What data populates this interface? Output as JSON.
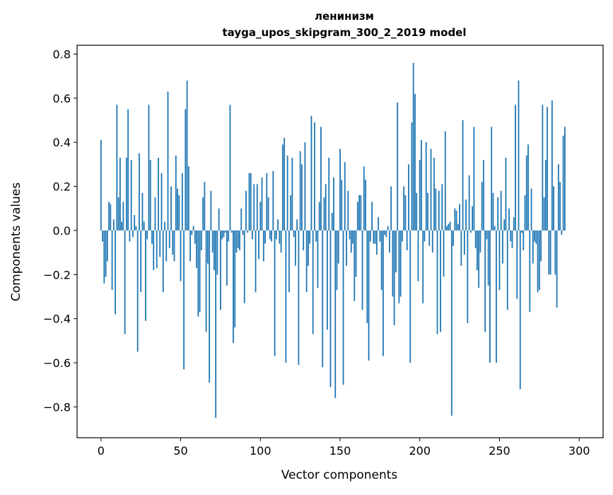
{
  "chart_data": {
    "type": "bar",
    "title": "ленинизм",
    "subtitle": "tayga_upos_skipgram_300_2_2019 model",
    "xlabel": "Vector components",
    "ylabel": "Components values",
    "xlim": [
      -15,
      315
    ],
    "ylim": [
      -0.94,
      0.84
    ],
    "xticks": [
      0,
      50,
      100,
      150,
      200,
      250,
      300
    ],
    "yticks": [
      -0.8,
      -0.6,
      -0.4,
      -0.2,
      0.0,
      0.2,
      0.4,
      0.6,
      0.8
    ],
    "ytick_labels": [
      "−0.8",
      "−0.6",
      "−0.4",
      "−0.2",
      "0.0",
      "0.2",
      "0.4",
      "0.6",
      "0.8"
    ],
    "bar_color": "#1f77b4",
    "grid": false,
    "values": [
      0.41,
      -0.05,
      -0.24,
      -0.21,
      -0.14,
      0.13,
      0.12,
      -0.27,
      0.05,
      -0.38,
      0.57,
      0.15,
      0.33,
      0.04,
      0.13,
      -0.47,
      0.33,
      0.55,
      -0.05,
      0.32,
      -0.03,
      0.07,
      0.02,
      -0.55,
      0.35,
      -0.28,
      0.17,
      0.04,
      -0.41,
      -0.04,
      0.57,
      0.32,
      -0.06,
      -0.18,
      0.15,
      -0.17,
      0.33,
      -0.12,
      0.26,
      -0.28,
      0.04,
      -0.14,
      0.63,
      -0.08,
      0.2,
      -0.11,
      -0.14,
      0.34,
      0.19,
      0.16,
      -0.23,
      0.26,
      -0.63,
      0.55,
      0.68,
      0.29,
      -0.14,
      -0.02,
      0.02,
      -0.06,
      -0.17,
      -0.39,
      -0.37,
      -0.09,
      0.15,
      0.22,
      -0.46,
      -0.15,
      -0.69,
      0.18,
      -0.1,
      -0.18,
      -0.85,
      -0.2,
      0.1,
      -0.36,
      -0.04,
      -0.03,
      -0.01,
      -0.25,
      -0.05,
      0.57,
      -0.01,
      -0.51,
      -0.44,
      -0.1,
      -0.08,
      -0.09,
      0.1,
      -0.02,
      -0.33,
      0.18,
      -0.01,
      0.26,
      0.26,
      -0.04,
      0.21,
      -0.28,
      0.21,
      -0.13,
      0.13,
      0.24,
      -0.14,
      -0.06,
      0.26,
      0.15,
      -0.04,
      -0.05,
      0.27,
      -0.57,
      -0.04,
      0.05,
      -0.06,
      -0.1,
      0.39,
      0.42,
      -0.6,
      0.34,
      -0.28,
      0.16,
      0.33,
      -0.03,
      -0.16,
      0.05,
      -0.61,
      0.36,
      0.3,
      -0.09,
      0.4,
      -0.28,
      -0.16,
      -0.06,
      0.52,
      -0.47,
      0.49,
      -0.05,
      -0.26,
      0.13,
      0.47,
      -0.62,
      0.15,
      0.21,
      -0.45,
      0.33,
      -0.71,
      0.08,
      0.24,
      -0.76,
      -0.27,
      -0.15,
      0.37,
      0.23,
      -0.7,
      0.31,
      -0.16,
      0.18,
      -0.04,
      -0.1,
      -0.06,
      -0.32,
      -0.21,
      0.13,
      0.16,
      0.16,
      -0.36,
      0.29,
      0.23,
      -0.42,
      -0.59,
      -0.05,
      0.13,
      -0.06,
      -0.06,
      -0.11,
      0.06,
      -0.05,
      -0.27,
      -0.57,
      -0.02,
      -0.03,
      0.02,
      -0.1,
      0.2,
      -0.3,
      -0.43,
      -0.19,
      0.58,
      -0.33,
      -0.3,
      -0.05,
      0.2,
      0.16,
      -0.09,
      0.3,
      -0.6,
      0.49,
      0.76,
      0.62,
      0.17,
      -0.23,
      0.32,
      0.41,
      -0.33,
      -0.05,
      0.4,
      0.17,
      -0.07,
      0.37,
      -0.1,
      0.33,
      0.19,
      -0.47,
      0.18,
      -0.46,
      0.21,
      -0.21,
      0.45,
      0.02,
      0.03,
      0.04,
      -0.84,
      -0.07,
      0.1,
      0.09,
      0.03,
      0.12,
      -0.16,
      0.5,
      -0.11,
      0.14,
      -0.42,
      0.25,
      -0.01,
      0.11,
      0.47,
      -0.08,
      -0.18,
      -0.26,
      -0.1,
      0.22,
      0.32,
      -0.46,
      -0.04,
      -0.25,
      -0.6,
      0.47,
      0.17,
      0.02,
      -0.6,
      0.15,
      -0.27,
      0.18,
      -0.15,
      0.05,
      0.33,
      -0.36,
      0.1,
      -0.05,
      -0.08,
      0.06,
      0.57,
      -0.31,
      0.68,
      -0.72,
      -0.01,
      -0.09,
      0.16,
      0.34,
      0.39,
      -0.37,
      0.19,
      -0.15,
      -0.05,
      -0.06,
      -0.28,
      -0.27,
      -0.14,
      0.57,
      0.15,
      0.32,
      0.56,
      -0.2,
      -0.2,
      0.59,
      0.2,
      -0.2,
      -0.35,
      0.3,
      0.22,
      -0.02,
      0.43,
      0.47
    ]
  }
}
